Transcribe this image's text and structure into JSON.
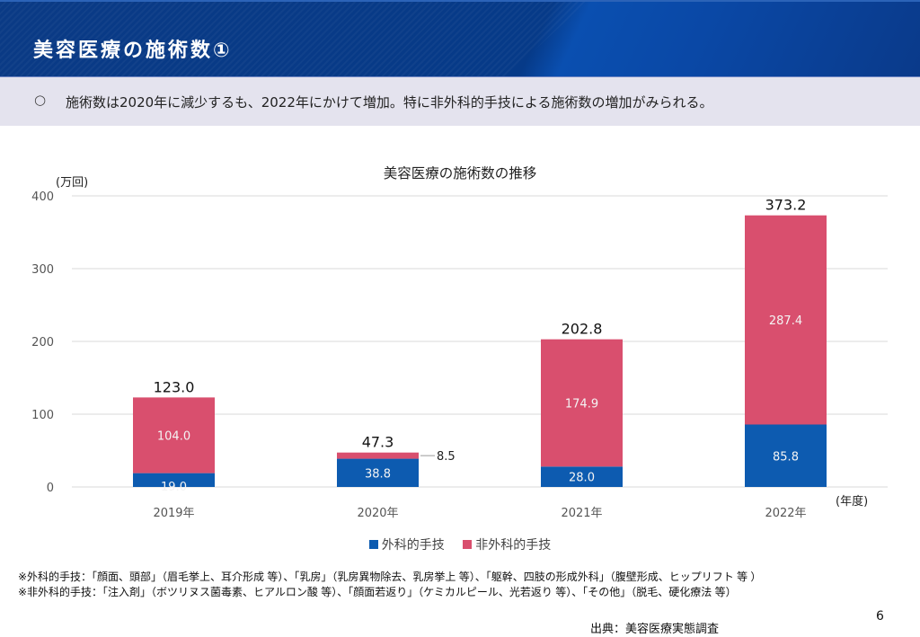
{
  "header": {
    "title": "美容医療の施術数①"
  },
  "summary": {
    "bullet": "○",
    "text": "施術数は2020年に減少するも、2022年にかけて増加。特に非外科的手技による施術数の増加がみられる。"
  },
  "colors": {
    "surgical": "#0d5bb0",
    "non_surgical": "#d94f6e",
    "header_bg": "#063a88",
    "summary_bg": "#e4e3ee",
    "grid": "#d9d9d9"
  },
  "chart_data": {
    "type": "bar",
    "stacked": true,
    "title": "美容医療の施術数の推移",
    "ylabel": "(万回)",
    "xlabel": "(年度)",
    "categories": [
      "2019年",
      "2020年",
      "2021年",
      "2022年"
    ],
    "series": [
      {
        "name": "外科的手技",
        "values": [
          19.0,
          38.8,
          28.0,
          85.8
        ],
        "labels": [
          "19.0",
          "38.8",
          "28.0",
          "85.8"
        ]
      },
      {
        "name": "非外科的手技",
        "values": [
          104.0,
          8.5,
          174.9,
          287.4
        ],
        "labels": [
          "104.0",
          "8.5",
          "174.9",
          "287.4"
        ]
      }
    ],
    "totals": [
      123.0,
      47.3,
      202.8,
      373.2
    ],
    "total_labels": [
      "123.0",
      "47.3",
      "202.8",
      "373.2"
    ],
    "ylim": [
      0,
      400
    ],
    "yticks": [
      0,
      100,
      200,
      300,
      400
    ],
    "ytick_labels": [
      "0",
      "100",
      "200",
      "300",
      "400"
    ],
    "grid": true,
    "legend": "bottom"
  },
  "notes": [
    "※外科的手技：「顔面、頭部」（眉毛挙上、耳介形成 等）、「乳房」（乳房異物除去、乳房挙上 等）、「躯幹、四肢の形成外科」（腹壁形成、ヒップリフト 等 ）",
    "※非外科的手技：「注入剤」（ボツリヌス菌毒素、ヒアルロン酸 等）、「顔面若返り」（ケミカルピール、光若返り 等）、「その他」（脱毛、硬化療法 等）"
  ],
  "footer": {
    "page_number": "6",
    "source": "出典：美容医療実態調査"
  }
}
